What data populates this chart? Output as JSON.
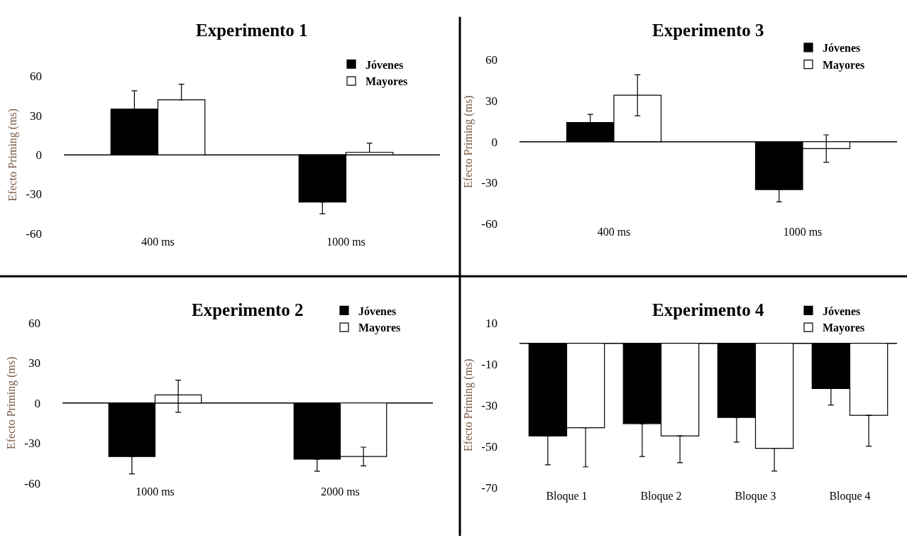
{
  "chart_data": [
    {
      "type": "bar",
      "title": "Experimento 1",
      "ylabel": "Efecto Priming (ms)",
      "categories": [
        "400 ms",
        "1000 ms"
      ],
      "series": [
        {
          "name": "Jóvenes",
          "color": "#000000",
          "values": [
            35,
            -36
          ],
          "errors": [
            [
              35,
              49
            ],
            [
              -45,
              -36
            ]
          ]
        },
        {
          "name": "Mayores",
          "color": "#ffffff",
          "values": [
            42,
            2
          ],
          "errors": [
            [
              42,
              54
            ],
            [
              2,
              9
            ]
          ]
        }
      ],
      "ylim": [
        -60,
        60
      ],
      "yticks": [
        -60,
        -30,
        0,
        30,
        60
      ],
      "ref_lines": [
        {
          "axis": "y",
          "value": 0,
          "color": "#000000"
        }
      ],
      "legend": "top right"
    },
    {
      "type": "bar",
      "title": "Experimento 3",
      "ylabel": "Efecto Priming (ms)",
      "categories": [
        "400 ms",
        "1000 ms"
      ],
      "series": [
        {
          "name": "Jóvenes",
          "color": "#000000",
          "values": [
            14,
            -35
          ],
          "errors": [
            [
              14,
              20
            ],
            [
              -44,
              -35
            ]
          ]
        },
        {
          "name": "Mayores",
          "color": "#ffffff",
          "values": [
            34,
            -5
          ],
          "errors": [
            [
              19,
              49
            ],
            [
              -15,
              5
            ]
          ]
        }
      ],
      "ylim": [
        -60,
        60
      ],
      "yticks": [
        -60,
        -30,
        0,
        30,
        60
      ],
      "ref_lines": [
        {
          "axis": "y",
          "value": 0,
          "color": "#000000"
        }
      ],
      "legend": "top right"
    },
    {
      "type": "bar",
      "title": "Experimento 2",
      "ylabel": "Efecto Priming (ms)",
      "categories": [
        "1000 ms",
        "2000 ms"
      ],
      "series": [
        {
          "name": "Jóvenes",
          "color": "#000000",
          "values": [
            -40,
            -42
          ],
          "errors": [
            [
              -53,
              -40
            ],
            [
              -51,
              -42
            ]
          ]
        },
        {
          "name": "Mayores",
          "color": "#ffffff",
          "values": [
            6,
            -40
          ],
          "errors": [
            [
              -7,
              17
            ],
            [
              -47,
              -33
            ]
          ]
        }
      ],
      "ylim": [
        -60,
        60
      ],
      "yticks": [
        -60,
        -30,
        0,
        30,
        60
      ],
      "ref_lines": [
        {
          "axis": "y",
          "value": 0,
          "color": "#000000"
        }
      ],
      "legend": "top right"
    },
    {
      "type": "bar",
      "title": "Experimento 4",
      "ylabel": "Efecto Priming (ms)",
      "categories": [
        "Bloque 1",
        "Bloque 2",
        "Bloque 3",
        "Bloque 4"
      ],
      "series": [
        {
          "name": "Jóvenes",
          "color": "#000000",
          "values": [
            -45,
            -39,
            -36,
            -22
          ],
          "errors": [
            [
              -59,
              -45
            ],
            [
              -55,
              -39
            ],
            [
              -48,
              -36
            ],
            [
              -30,
              -22
            ]
          ]
        },
        {
          "name": "Mayores",
          "color": "#ffffff",
          "values": [
            -41,
            -45,
            -51,
            -35
          ],
          "errors": [
            [
              -60,
              -41
            ],
            [
              -58,
              -45
            ],
            [
              -62,
              -51
            ],
            [
              -50,
              -35
            ]
          ]
        }
      ],
      "ylim": [
        -70,
        10
      ],
      "yticks": [
        -70,
        -50,
        -30,
        -10,
        10
      ],
      "ref_lines": [
        {
          "axis": "y",
          "value": 0,
          "color": "#000000"
        }
      ],
      "legend": "top right"
    }
  ]
}
